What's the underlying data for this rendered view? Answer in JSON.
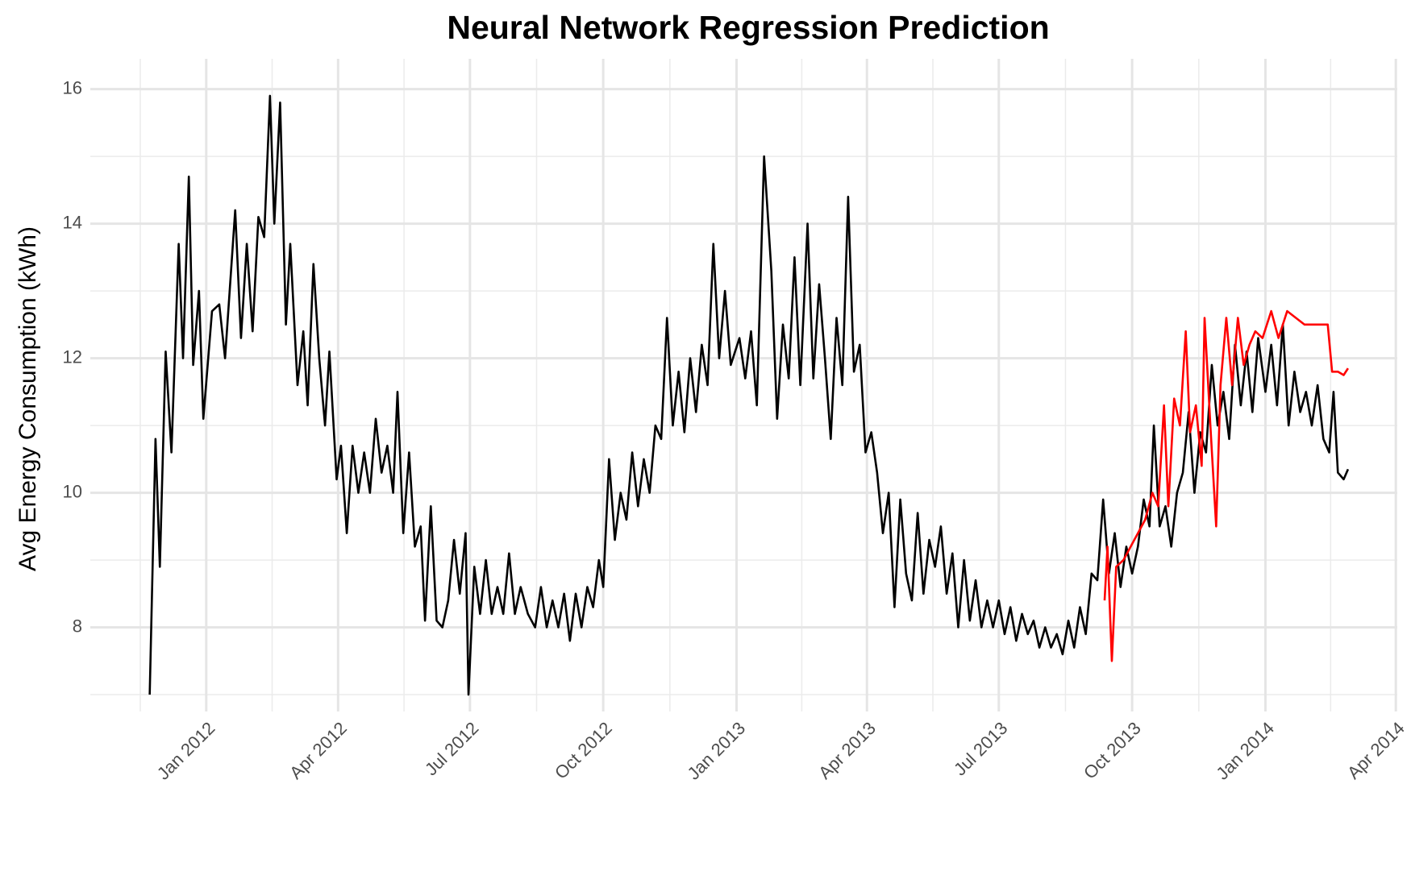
{
  "chart_data": {
    "type": "line",
    "title": "Neural Network Regression Prediction",
    "y_label": "Avg Energy Consumption (kWh)",
    "xlim": [
      "2011-10-13",
      "2014-04-02"
    ],
    "xticks": [
      {
        "value": "2012-01-01",
        "label": "Jan 2012"
      },
      {
        "value": "2012-04-01",
        "label": "Apr 2012"
      },
      {
        "value": "2012-07-01",
        "label": "Jul 2012"
      },
      {
        "value": "2012-10-01",
        "label": "Oct 2012"
      },
      {
        "value": "2013-01-01",
        "label": "Jan 2013"
      },
      {
        "value": "2013-04-01",
        "label": "Apr 2013"
      },
      {
        "value": "2013-07-01",
        "label": "Jul 2013"
      },
      {
        "value": "2013-10-01",
        "label": "Oct 2013"
      },
      {
        "value": "2014-01-01",
        "label": "Jan 2014"
      },
      {
        "value": "2014-04-01",
        "label": "Apr 2014"
      }
    ],
    "ylim": [
      6.75,
      16.45
    ],
    "yticks": [
      8,
      10,
      12,
      14,
      16
    ],
    "grid": true,
    "series": [
      {
        "color": "#000000",
        "x": [
          "2011-11-23",
          "2011-11-27",
          "2011-11-30",
          "2011-12-04",
          "2011-12-08",
          "2011-12-13",
          "2011-12-16",
          "2011-12-20",
          "2011-12-23",
          "2011-12-27",
          "2011-12-30",
          "2012-01-05",
          "2012-01-10",
          "2012-01-14",
          "2012-01-21",
          "2012-01-25",
          "2012-01-29",
          "2012-02-02",
          "2012-02-06",
          "2012-02-10",
          "2012-02-14",
          "2012-02-17",
          "2012-02-21",
          "2012-02-25",
          "2012-02-28",
          "2012-03-04",
          "2012-03-08",
          "2012-03-11",
          "2012-03-15",
          "2012-03-19",
          "2012-03-23",
          "2012-03-26",
          "2012-03-31",
          "2012-04-03",
          "2012-04-07",
          "2012-04-11",
          "2012-04-15",
          "2012-04-19",
          "2012-04-23",
          "2012-04-27",
          "2012-05-01",
          "2012-05-05",
          "2012-05-09",
          "2012-05-12",
          "2012-05-16",
          "2012-05-20",
          "2012-05-24",
          "2012-05-28",
          "2012-05-31",
          "2012-06-04",
          "2012-06-08",
          "2012-06-12",
          "2012-06-16",
          "2012-06-20",
          "2012-06-24",
          "2012-06-28",
          "2012-06-30",
          "2012-07-04",
          "2012-07-08",
          "2012-07-12",
          "2012-07-16",
          "2012-07-20",
          "2012-07-24",
          "2012-07-28",
          "2012-08-01",
          "2012-08-05",
          "2012-08-10",
          "2012-08-15",
          "2012-08-19",
          "2012-08-23",
          "2012-08-27",
          "2012-08-31",
          "2012-09-04",
          "2012-09-08",
          "2012-09-12",
          "2012-09-16",
          "2012-09-20",
          "2012-09-24",
          "2012-09-28",
          "2012-10-01",
          "2012-10-05",
          "2012-10-09",
          "2012-10-13",
          "2012-10-17",
          "2012-10-21",
          "2012-10-25",
          "2012-10-29",
          "2012-11-02",
          "2012-11-06",
          "2012-11-10",
          "2012-11-14",
          "2012-11-18",
          "2012-11-22",
          "2012-11-26",
          "2012-11-30",
          "2012-12-04",
          "2012-12-08",
          "2012-12-12",
          "2012-12-16",
          "2012-12-20",
          "2012-12-24",
          "2012-12-28",
          "2013-01-03",
          "2013-01-07",
          "2013-01-11",
          "2013-01-15",
          "2013-01-20",
          "2013-01-25",
          "2013-01-29",
          "2013-02-02",
          "2013-02-06",
          "2013-02-10",
          "2013-02-14",
          "2013-02-19",
          "2013-02-23",
          "2013-02-27",
          "2013-03-03",
          "2013-03-07",
          "2013-03-11",
          "2013-03-15",
          "2013-03-19",
          "2013-03-23",
          "2013-03-27",
          "2013-03-31",
          "2013-04-04",
          "2013-04-08",
          "2013-04-12",
          "2013-04-16",
          "2013-04-20",
          "2013-04-24",
          "2013-04-28",
          "2013-05-02",
          "2013-05-06",
          "2013-05-10",
          "2013-05-14",
          "2013-05-18",
          "2013-05-22",
          "2013-05-26",
          "2013-05-30",
          "2013-06-03",
          "2013-06-07",
          "2013-06-11",
          "2013-06-15",
          "2013-06-19",
          "2013-06-23",
          "2013-06-27",
          "2013-07-01",
          "2013-07-05",
          "2013-07-09",
          "2013-07-13",
          "2013-07-17",
          "2013-07-21",
          "2013-07-25",
          "2013-07-29",
          "2013-08-02",
          "2013-08-06",
          "2013-08-10",
          "2013-08-14",
          "2013-08-18",
          "2013-08-22",
          "2013-08-26",
          "2013-08-30",
          "2013-09-03",
          "2013-09-07",
          "2013-09-11",
          "2013-09-15",
          "2013-09-19",
          "2013-09-23",
          "2013-09-27",
          "2013-10-01",
          "2013-10-05",
          "2013-10-09",
          "2013-10-13",
          "2013-10-16",
          "2013-10-20",
          "2013-10-24",
          "2013-10-28",
          "2013-11-01",
          "2013-11-05",
          "2013-11-09",
          "2013-11-13",
          "2013-11-17",
          "2013-11-21",
          "2013-11-25",
          "2013-11-29",
          "2013-12-03",
          "2013-12-07",
          "2013-12-11",
          "2013-12-15",
          "2013-12-19",
          "2013-12-23",
          "2013-12-27",
          "2014-01-01",
          "2014-01-05",
          "2014-01-09",
          "2014-01-13",
          "2014-01-17",
          "2014-01-21",
          "2014-01-25",
          "2014-01-29",
          "2014-02-02",
          "2014-02-06",
          "2014-02-10",
          "2014-02-14",
          "2014-02-17",
          "2014-02-20",
          "2014-02-24",
          "2014-02-27"
        ],
        "values": [
          7.0,
          10.8,
          8.9,
          12.1,
          10.6,
          13.7,
          12.0,
          14.7,
          11.9,
          13.0,
          11.1,
          12.7,
          12.8,
          12.0,
          14.2,
          12.3,
          13.7,
          12.4,
          14.1,
          13.8,
          15.9,
          14.0,
          15.8,
          12.5,
          13.7,
          11.6,
          12.4,
          11.3,
          13.4,
          12.0,
          11.0,
          12.1,
          10.2,
          10.7,
          9.4,
          10.7,
          10.0,
          10.6,
          10.0,
          11.1,
          10.3,
          10.7,
          10.0,
          11.5,
          9.4,
          10.6,
          9.2,
          9.5,
          8.1,
          9.8,
          8.1,
          8.0,
          8.4,
          9.3,
          8.5,
          9.4,
          7.0,
          8.9,
          8.2,
          9.0,
          8.2,
          8.6,
          8.2,
          9.1,
          8.2,
          8.6,
          8.2,
          8.0,
          8.6,
          8.0,
          8.4,
          8.0,
          8.5,
          7.8,
          8.5,
          8.0,
          8.6,
          8.3,
          9.0,
          8.6,
          10.5,
          9.3,
          10.0,
          9.6,
          10.6,
          9.8,
          10.5,
          10.0,
          11.0,
          10.8,
          12.6,
          11.0,
          11.8,
          10.9,
          12.0,
          11.2,
          12.2,
          11.6,
          13.7,
          12.0,
          13.0,
          11.9,
          12.3,
          11.7,
          12.4,
          11.3,
          15.0,
          13.3,
          11.1,
          12.5,
          11.7,
          13.5,
          11.6,
          14.0,
          11.7,
          13.1,
          12.0,
          10.8,
          12.6,
          11.6,
          14.4,
          11.8,
          12.2,
          10.6,
          10.9,
          10.3,
          9.4,
          10.0,
          8.3,
          9.9,
          8.8,
          8.4,
          9.7,
          8.5,
          9.3,
          8.9,
          9.5,
          8.5,
          9.1,
          8.0,
          9.0,
          8.1,
          8.7,
          8.0,
          8.4,
          8.0,
          8.4,
          7.9,
          8.3,
          7.8,
          8.2,
          7.9,
          8.1,
          7.7,
          8.0,
          7.7,
          7.9,
          7.6,
          8.1,
          7.7,
          8.3,
          7.9,
          8.8,
          8.7,
          9.9,
          8.8,
          9.4,
          8.6,
          9.2,
          8.8,
          9.2,
          9.9,
          9.5,
          11.0,
          9.5,
          9.8,
          9.2,
          10.0,
          10.3,
          11.2,
          10.0,
          10.9,
          10.6,
          11.9,
          11.0,
          11.5,
          10.8,
          12.2,
          11.3,
          12.1,
          11.2,
          12.3,
          11.5,
          12.2,
          11.3,
          12.5,
          11.0,
          11.8,
          11.2,
          11.5,
          11.0,
          11.6,
          10.8,
          10.6,
          11.5,
          10.3,
          10.2,
          10.35
        ]
      },
      {
        "color": "#ff0000",
        "x": [
          "2013-09-12",
          "2013-09-14",
          "2013-09-17",
          "2013-09-20",
          "2013-09-25",
          "2013-09-30",
          "2013-10-05",
          "2013-10-10",
          "2013-10-15",
          "2013-10-19",
          "2013-10-23",
          "2013-10-26",
          "2013-10-30",
          "2013-11-03",
          "2013-11-07",
          "2013-11-10",
          "2013-11-14",
          "2013-11-18",
          "2013-11-20",
          "2013-11-24",
          "2013-11-28",
          "2013-12-01",
          "2013-12-05",
          "2013-12-09",
          "2013-12-13",
          "2013-12-17",
          "2013-12-21",
          "2013-12-25",
          "2013-12-30",
          "2014-01-05",
          "2014-01-10",
          "2014-01-16",
          "2014-01-22",
          "2014-01-28",
          "2014-02-03",
          "2014-02-08",
          "2014-02-13",
          "2014-02-16",
          "2014-02-20",
          "2014-02-24",
          "2014-02-27"
        ],
        "values": [
          8.4,
          9.2,
          7.5,
          8.9,
          9.0,
          9.2,
          9.4,
          9.6,
          10.0,
          9.8,
          11.3,
          9.8,
          11.4,
          11.0,
          12.4,
          10.9,
          11.3,
          10.4,
          12.6,
          11.0,
          9.5,
          11.6,
          12.6,
          11.6,
          12.6,
          11.9,
          12.2,
          12.4,
          12.3,
          12.7,
          12.3,
          12.7,
          12.6,
          12.5,
          12.5,
          12.5,
          12.5,
          11.8,
          11.8,
          11.75,
          11.85
        ]
      }
    ]
  }
}
